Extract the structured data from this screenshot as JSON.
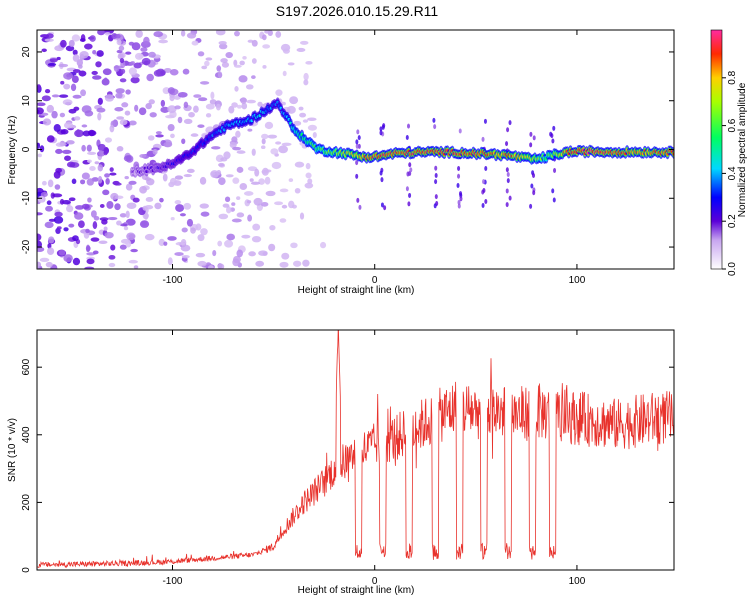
{
  "title": "S197.2026.010.15.29.R11",
  "chart_data": [
    {
      "type": "heatmap",
      "xlabel": "Height of straight line (km)",
      "ylabel": "Frequency (Hz)",
      "xlim": [
        -167,
        148
      ],
      "ylim": [
        -24.5,
        24.5
      ],
      "xticks": [
        "-100",
        "0",
        "100"
      ],
      "yticks": [
        "-20",
        "-10",
        "0",
        "10",
        "20"
      ],
      "colorbar": {
        "label": "Normalized spectral amplitude",
        "ticks": [
          "0.0",
          "0.2",
          "0.4",
          "0.6",
          "0.8"
        ],
        "range": [
          0,
          1
        ]
      },
      "ridge": {
        "x": [
          -120,
          -110,
          -100,
          -92,
          -86,
          -80,
          -72,
          -62,
          -54,
          -48,
          -44,
          -40,
          -34,
          -28,
          -20,
          -12,
          -6,
          0,
          10,
          20,
          30,
          40,
          50,
          60,
          68,
          74,
          80,
          84,
          90,
          96,
          106,
          116,
          126,
          136,
          148
        ],
        "freq": [
          -4.5,
          -4,
          -3,
          -1,
          1,
          3,
          5,
          6,
          8,
          9.5,
          7,
          4,
          2,
          0,
          -0.5,
          -1,
          -1.5,
          -1.5,
          -0.8,
          -0.6,
          -0.5,
          -0.6,
          -0.8,
          -1,
          -1.3,
          -1.8,
          -2,
          -1.6,
          -1,
          -0.5,
          -0.4,
          -0.5,
          -0.5,
          -0.5,
          -0.6
        ],
        "amp": [
          0.15,
          0.2,
          0.25,
          0.3,
          0.3,
          0.35,
          0.4,
          0.4,
          0.4,
          0.35,
          0.4,
          0.5,
          0.55,
          0.6,
          0.65,
          0.75,
          0.85,
          0.9,
          0.9,
          0.9,
          0.9,
          0.9,
          0.9,
          0.85,
          0.85,
          0.8,
          0.7,
          0.6,
          0.7,
          0.9,
          0.95,
          0.9,
          0.85,
          0.85,
          0.9
        ]
      },
      "noise_region_x": [
        -167,
        -45
      ]
    },
    {
      "type": "line",
      "xlabel": "Height of straight line (km)",
      "ylabel": "SNR (10 * v/v)",
      "xlim": [
        -167,
        148
      ],
      "ylim": [
        0,
        710
      ],
      "xticks": [
        "-100",
        "0",
        "100"
      ],
      "yticks": [
        "0",
        "200",
        "400",
        "600"
      ],
      "series": [
        {
          "name": "SNR",
          "color": "#e8322c",
          "profile_x": [
            -167,
            -120,
            -100,
            -80,
            -60,
            -50,
            -45,
            -40,
            -35,
            -30,
            -25,
            -20,
            -10,
            0,
            10,
            20,
            30,
            40,
            50,
            60,
            70,
            80,
            90,
            100,
            110,
            120,
            130,
            140,
            148
          ],
          "profile_y": [
            15,
            20,
            25,
            35,
            45,
            70,
            120,
            160,
            200,
            230,
            260,
            300,
            340,
            370,
            390,
            420,
            450,
            480,
            470,
            470,
            460,
            470,
            460,
            450,
            440,
            430,
            440,
            450,
            450
          ],
          "spike": {
            "x": -18,
            "y": 710
          },
          "dropouts_x": [
            -8,
            4,
            17,
            30,
            42,
            54,
            66,
            78,
            88
          ]
        }
      ]
    }
  ]
}
